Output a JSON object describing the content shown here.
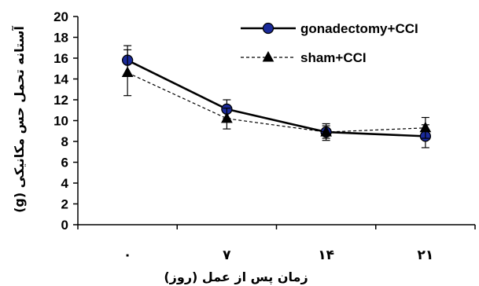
{
  "chart_data": {
    "type": "line",
    "x": [
      "۰",
      "۷",
      "۱۴",
      "۲۱"
    ],
    "xlabel": "زمان پس از عمل (روز)",
    "ylabel": "آستانه تحمل حس مکانیکی (g)",
    "ylim": [
      0,
      20
    ],
    "yticks": [
      0,
      2,
      4,
      6,
      8,
      10,
      12,
      14,
      16,
      18,
      20
    ],
    "grid": false,
    "legend_position": "top-right",
    "series": [
      {
        "name": "gonadectomy+CCI",
        "values": [
          15.8,
          11.1,
          8.9,
          8.5
        ],
        "errors": [
          1.4,
          0.9,
          0.8,
          1.1
        ],
        "line": "solid",
        "marker": "circle",
        "marker_color": "#1a2a9a",
        "line_color": "#000000"
      },
      {
        "name": "sham+CCI",
        "values": [
          14.6,
          10.2,
          8.9,
          9.3
        ],
        "errors": [
          2.2,
          1.0,
          0.6,
          1.0
        ],
        "line": "dashed",
        "marker": "triangle",
        "marker_color": "#000000",
        "line_color": "#000000"
      }
    ]
  }
}
